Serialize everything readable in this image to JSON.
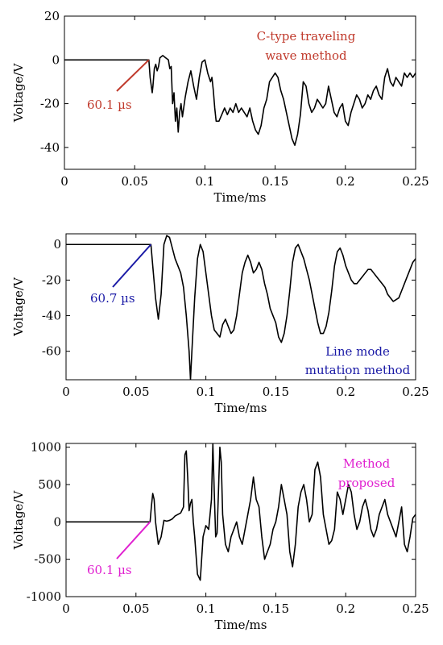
{
  "chart_data": [
    {
      "type": "line",
      "xlabel": "Time/ms",
      "ylabel": "Voltage/V",
      "xlim": [
        0,
        0.25
      ],
      "ylim": [
        -50,
        20
      ],
      "xticks": [
        "0",
        "0.05",
        "0.1",
        "0.15",
        "0.2",
        "0.25"
      ],
      "yticks": [
        "-40",
        "-20",
        "0",
        "20"
      ],
      "grid": false,
      "legend": "none",
      "method_label": [
        "C-type traveling",
        "wave method"
      ],
      "method_color": "#c0392b",
      "time_label": "60.1 µs",
      "marker_time_ms": 0.0601,
      "series": [
        {
          "x": [
            0,
            0.058,
            0.0601,
            0.061,
            0.0625,
            0.063,
            0.064,
            0.065,
            0.066,
            0.067,
            0.068,
            0.07,
            0.072,
            0.074,
            0.075,
            0.076,
            0.077,
            0.078,
            0.079,
            0.08,
            0.081,
            0.082,
            0.083,
            0.084,
            0.086,
            0.088,
            0.09,
            0.092,
            0.094,
            0.096,
            0.098,
            0.1,
            0.102,
            0.104,
            0.105,
            0.106,
            0.107,
            0.108,
            0.11,
            0.112,
            0.114,
            0.116,
            0.118,
            0.12,
            0.122,
            0.124,
            0.126,
            0.128,
            0.13,
            0.132,
            0.134,
            0.136,
            0.138,
            0.14,
            0.142,
            0.144,
            0.146,
            0.148,
            0.15,
            0.152,
            0.154,
            0.156,
            0.158,
            0.16,
            0.162,
            0.164,
            0.166,
            0.168,
            0.17,
            0.172,
            0.174,
            0.176,
            0.178,
            0.18,
            0.182,
            0.184,
            0.186,
            0.188,
            0.19,
            0.192,
            0.194,
            0.196,
            0.198,
            0.2,
            0.202,
            0.204,
            0.206,
            0.208,
            0.21,
            0.212,
            0.214,
            0.216,
            0.218,
            0.22,
            0.222,
            0.224,
            0.226,
            0.228,
            0.23,
            0.232,
            0.234,
            0.236,
            0.238,
            0.24,
            0.242,
            0.244,
            0.246,
            0.248,
            0.25
          ],
          "y": [
            0,
            0,
            0,
            -8,
            -15,
            -12,
            -4,
            -2,
            -5,
            -3,
            1,
            2,
            1,
            0,
            -4,
            -3,
            -20,
            -15,
            -28,
            -22,
            -33,
            -24,
            -20,
            -26,
            -17,
            -10,
            -5,
            -12,
            -18,
            -8,
            -1,
            0,
            -6,
            -10,
            -8,
            -14,
            -22,
            -28,
            -28,
            -25,
            -22,
            -25,
            -22,
            -24,
            -20,
            -24,
            -22,
            -24,
            -26,
            -22,
            -28,
            -32,
            -34,
            -30,
            -22,
            -18,
            -10,
            -8,
            -6,
            -8,
            -14,
            -18,
            -24,
            -30,
            -36,
            -39,
            -34,
            -25,
            -10,
            -12,
            -20,
            -24,
            -22,
            -18,
            -20,
            -22,
            -20,
            -12,
            -18,
            -24,
            -26,
            -22,
            -20,
            -28,
            -30,
            -24,
            -20,
            -16,
            -18,
            -22,
            -20,
            -16,
            -18,
            -14,
            -12,
            -16,
            -18,
            -8,
            -4,
            -10,
            -12,
            -8,
            -10,
            -12,
            -6,
            -8,
            -6,
            -8,
            -6
          ]
        }
      ]
    },
    {
      "type": "line",
      "xlabel": "Time/ms",
      "ylabel": "Voltage/V",
      "xlim": [
        0,
        0.25
      ],
      "ylim": [
        -76,
        6
      ],
      "xticks": [
        "0",
        "0.05",
        "0.1",
        "0.15",
        "0.2",
        "0.25"
      ],
      "yticks": [
        "-60",
        "-40",
        "-20",
        "0"
      ],
      "grid": false,
      "legend": "none",
      "method_label": [
        "Line mode",
        "mutation method"
      ],
      "method_color": "#1a1aa6",
      "time_label": "60.7 µs",
      "marker_time_ms": 0.0607,
      "series": [
        {
          "x": [
            0,
            0.058,
            0.0607,
            0.062,
            0.064,
            0.066,
            0.068,
            0.07,
            0.072,
            0.074,
            0.076,
            0.078,
            0.08,
            0.082,
            0.084,
            0.086,
            0.088,
            0.089,
            0.09,
            0.092,
            0.094,
            0.096,
            0.098,
            0.1,
            0.102,
            0.104,
            0.106,
            0.108,
            0.11,
            0.112,
            0.114,
            0.116,
            0.118,
            0.12,
            0.122,
            0.124,
            0.126,
            0.128,
            0.13,
            0.132,
            0.134,
            0.136,
            0.138,
            0.14,
            0.142,
            0.144,
            0.146,
            0.148,
            0.15,
            0.152,
            0.154,
            0.156,
            0.158,
            0.16,
            0.162,
            0.164,
            0.166,
            0.168,
            0.17,
            0.172,
            0.174,
            0.176,
            0.178,
            0.18,
            0.182,
            0.184,
            0.186,
            0.188,
            0.19,
            0.192,
            0.194,
            0.196,
            0.198,
            0.2,
            0.202,
            0.204,
            0.206,
            0.208,
            0.21,
            0.212,
            0.214,
            0.216,
            0.218,
            0.22,
            0.222,
            0.224,
            0.226,
            0.228,
            0.23,
            0.232,
            0.234,
            0.236,
            0.238,
            0.24,
            0.242,
            0.244,
            0.246,
            0.248,
            0.25
          ],
          "y": [
            0,
            0,
            0,
            -12,
            -30,
            -42,
            -28,
            0,
            5,
            4,
            -2,
            -8,
            -12,
            -16,
            -24,
            -40,
            -60,
            -76,
            -60,
            -30,
            -8,
            0,
            -4,
            -16,
            -28,
            -40,
            -48,
            -50,
            -52,
            -45,
            -42,
            -46,
            -50,
            -48,
            -40,
            -28,
            -16,
            -10,
            -6,
            -10,
            -16,
            -14,
            -10,
            -14,
            -22,
            -28,
            -36,
            -40,
            -44,
            -52,
            -55,
            -50,
            -40,
            -26,
            -10,
            -2,
            0,
            -4,
            -8,
            -14,
            -20,
            -28,
            -36,
            -44,
            -50,
            -50,
            -46,
            -38,
            -26,
            -12,
            -4,
            -2,
            -6,
            -12,
            -16,
            -20,
            -22,
            -22,
            -20,
            -18,
            -16,
            -14,
            -14,
            -16,
            -18,
            -20,
            -22,
            -24,
            -28,
            -30,
            -32,
            -31,
            -30,
            -26,
            -22,
            -18,
            -14,
            -10,
            -8
          ]
        }
      ]
    },
    {
      "type": "line",
      "xlabel": "Time/ms",
      "ylabel": "Voltage/V",
      "xlim": [
        0,
        0.25
      ],
      "ylim": [
        -1000,
        1050
      ],
      "xticks": [
        "0",
        "0.05",
        "0.1",
        "0.15",
        "0.2",
        "0.25"
      ],
      "yticks": [
        "-1000",
        "-500",
        "0",
        "500",
        "1000"
      ],
      "grid": false,
      "legend": "none",
      "method_label": [
        "Method",
        "proposed"
      ],
      "method_color": "#e020d0",
      "time_label": "60.1 µs",
      "marker_time_ms": 0.0601,
      "series": [
        {
          "x": [
            0,
            0.058,
            0.0601,
            0.061,
            0.062,
            0.063,
            0.064,
            0.065,
            0.066,
            0.068,
            0.07,
            0.072,
            0.074,
            0.076,
            0.078,
            0.08,
            0.082,
            0.084,
            0.085,
            0.086,
            0.087,
            0.088,
            0.089,
            0.09,
            0.091,
            0.092,
            0.094,
            0.096,
            0.098,
            0.1,
            0.102,
            0.104,
            0.105,
            0.106,
            0.107,
            0.108,
            0.109,
            0.11,
            0.111,
            0.112,
            0.114,
            0.116,
            0.118,
            0.12,
            0.122,
            0.124,
            0.126,
            0.128,
            0.13,
            0.132,
            0.134,
            0.136,
            0.138,
            0.14,
            0.142,
            0.144,
            0.146,
            0.148,
            0.15,
            0.152,
            0.154,
            0.156,
            0.158,
            0.16,
            0.162,
            0.164,
            0.166,
            0.168,
            0.17,
            0.172,
            0.174,
            0.176,
            0.178,
            0.18,
            0.182,
            0.184,
            0.186,
            0.188,
            0.19,
            0.192,
            0.194,
            0.196,
            0.198,
            0.2,
            0.202,
            0.204,
            0.206,
            0.208,
            0.21,
            0.212,
            0.214,
            0.216,
            0.218,
            0.22,
            0.222,
            0.224,
            0.226,
            0.228,
            0.23,
            0.232,
            0.234,
            0.236,
            0.238,
            0.24,
            0.242,
            0.244,
            0.246,
            0.248,
            0.25
          ],
          "y": [
            0,
            0,
            0,
            200,
            380,
            300,
            0,
            -150,
            -300,
            -200,
            20,
            10,
            20,
            40,
            80,
            100,
            120,
            200,
            900,
            950,
            600,
            150,
            250,
            300,
            0,
            -200,
            -700,
            -780,
            -200,
            -50,
            -100,
            300,
            1050,
            400,
            -200,
            -150,
            400,
            1000,
            800,
            100,
            -300,
            -400,
            -200,
            -100,
            0,
            -200,
            -300,
            -100,
            100,
            300,
            600,
            300,
            200,
            -200,
            -500,
            -400,
            -300,
            -100,
            0,
            200,
            500,
            300,
            100,
            -400,
            -600,
            -300,
            200,
            400,
            500,
            300,
            0,
            100,
            700,
            800,
            600,
            100,
            -100,
            -300,
            -250,
            -100,
            400,
            300,
            100,
            300,
            500,
            400,
            100,
            -100,
            0,
            200,
            300,
            150,
            -100,
            -200,
            -100,
            100,
            200,
            300,
            100,
            0,
            -100,
            -200,
            0,
            200,
            -300,
            -400,
            -200,
            50,
            100
          ]
        }
      ]
    }
  ]
}
